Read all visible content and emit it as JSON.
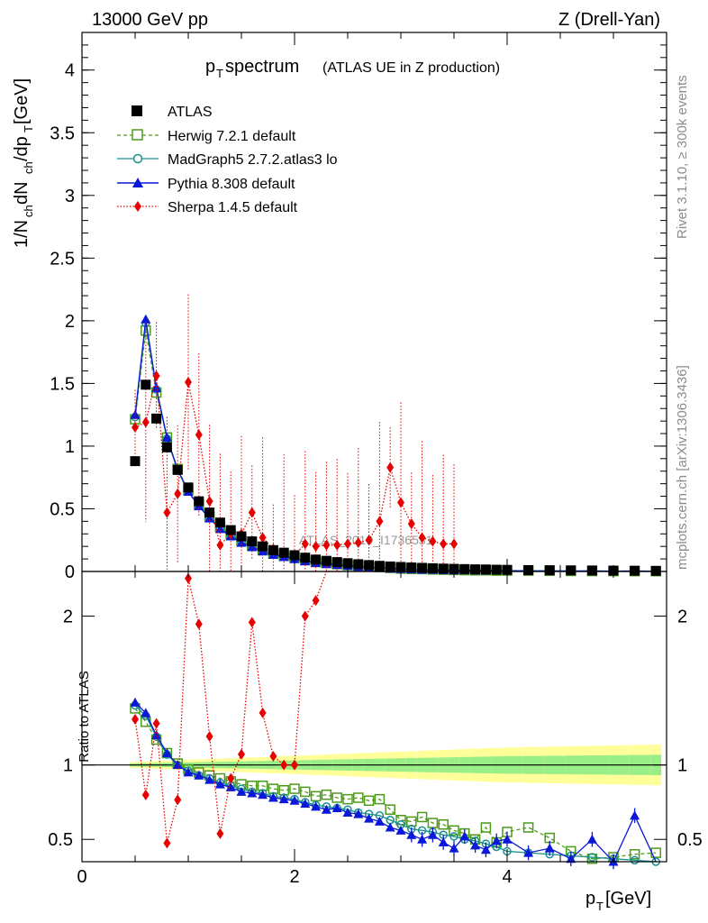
{
  "header": {
    "left": "13000 GeV pp",
    "right": "Z (Drell-Yan)"
  },
  "chart_data": {
    "type": "line",
    "title": "p",
    "title_sub": "T",
    "title_main": " spectrum",
    "title_note": " (ATLAS UE in Z production)",
    "ylabel": "1/N",
    "ylabel_sub1": "ch",
    "ylabel_mid": " dN",
    "ylabel_sub2": "ch",
    "ylabel_end": "/dp",
    "ylabel_sub3": "T",
    "ylabel_unit": " [GeV]",
    "ratio_ylabel": "Ratio to ATLAS",
    "xlabel": "p",
    "xlabel_sub": "T",
    "xlabel_unit": " [GeV]",
    "watermark": "ATLAS_2019_I1736531",
    "side_top": "Rivet 3.1.10, ≥ 300k events",
    "side_bottom": "mcplots.cern.ch [arXiv:1306.3436]",
    "xlim": [
      0,
      5.5
    ],
    "ylim": [
      0,
      4.3
    ],
    "ratio_ylim": [
      0.35,
      2.3
    ],
    "xticks": [
      "0",
      "2",
      "4"
    ],
    "yticks": [
      "0",
      "0.5",
      "1",
      "1.5",
      "2",
      "2.5",
      "3",
      "3.5",
      "4"
    ],
    "ratio_yticks": [
      "0.5",
      "1",
      "2"
    ],
    "x": [
      0.5,
      0.6,
      0.7,
      0.8,
      0.9,
      1.0,
      1.1,
      1.2,
      1.3,
      1.4,
      1.5,
      1.6,
      1.7,
      1.8,
      1.9,
      2.0,
      2.1,
      2.2,
      2.3,
      2.4,
      2.5,
      2.6,
      2.7,
      2.8,
      2.9,
      3.0,
      3.1,
      3.2,
      3.3,
      3.4,
      3.5,
      3.6,
      3.7,
      3.8,
      3.9,
      4.0,
      4.2,
      4.4,
      4.6,
      4.8,
      5.0,
      5.2,
      5.4
    ],
    "series": [
      {
        "name": "ATLAS",
        "color": "#000000",
        "marker": "square-filled",
        "values": [
          0.88,
          1.49,
          1.22,
          0.99,
          0.81,
          0.67,
          0.56,
          0.47,
          0.39,
          0.33,
          0.28,
          0.24,
          0.2,
          0.17,
          0.15,
          0.13,
          0.11,
          0.095,
          0.085,
          0.075,
          0.066,
          0.058,
          0.051,
          0.045,
          0.04,
          0.036,
          0.032,
          0.029,
          0.026,
          0.023,
          0.021,
          0.019,
          0.017,
          0.016,
          0.014,
          0.013,
          0.011,
          0.01,
          0.009,
          0.008,
          0.007,
          0.006,
          0.005
        ]
      },
      {
        "name": "Herwig 7.2.1 default",
        "color": "#4d9a1a",
        "marker": "square-open",
        "ratio": [
          1.38,
          1.29,
          1.17,
          1.08,
          1.01,
          0.97,
          0.95,
          0.93,
          0.91,
          0.89,
          0.87,
          0.86,
          0.86,
          0.84,
          0.83,
          0.84,
          0.82,
          0.79,
          0.8,
          0.78,
          0.77,
          0.78,
          0.76,
          0.77,
          0.7,
          0.63,
          0.62,
          0.65,
          0.61,
          0.6,
          0.56,
          0.54,
          0.5,
          0.58,
          0.48,
          0.55,
          0.58,
          0.51,
          0.42,
          0.37,
          0.38,
          0.4,
          0.41
        ]
      },
      {
        "name": "MadGraph5 2.7.2.atlas3 lo",
        "color": "#188f8f",
        "marker": "circle-open",
        "ratio": [
          1.4,
          1.33,
          1.19,
          1.07,
          1.0,
          0.96,
          0.93,
          0.91,
          0.88,
          0.86,
          0.84,
          0.82,
          0.81,
          0.79,
          0.78,
          0.77,
          0.75,
          0.73,
          0.72,
          0.71,
          0.7,
          0.68,
          0.67,
          0.66,
          0.63,
          0.6,
          0.57,
          0.56,
          0.55,
          0.53,
          0.52,
          0.5,
          0.49,
          0.47,
          0.45,
          0.42,
          0.41,
          0.4,
          0.39,
          0.38,
          0.37,
          0.36,
          0.35
        ]
      },
      {
        "name": "Pythia 8.308 default",
        "color": "#0b18d8",
        "marker": "triangle-filled",
        "ratio": [
          1.42,
          1.35,
          1.2,
          1.08,
          1.0,
          0.95,
          0.93,
          0.9,
          0.87,
          0.85,
          0.82,
          0.81,
          0.8,
          0.78,
          0.77,
          0.76,
          0.74,
          0.72,
          0.7,
          0.71,
          0.68,
          0.67,
          0.64,
          0.62,
          0.58,
          0.56,
          0.53,
          0.5,
          0.53,
          0.48,
          0.44,
          0.52,
          0.46,
          0.43,
          0.49,
          0.5,
          0.41,
          0.44,
          0.37,
          0.5,
          0.35,
          0.66,
          0.33
        ]
      },
      {
        "name": "Sherpa 1.4.5 default",
        "color": "#e60000",
        "marker": "diamond-filled",
        "values": [
          1.15,
          1.19,
          1.56,
          0.47,
          0.62,
          1.51,
          1.09,
          0.56,
          0.21,
          0.3,
          0.3,
          0.47,
          0.27,
          0.18,
          0.15,
          0.13,
          0.22,
          0.2,
          0.21,
          0.21,
          0.22,
          0.23,
          0.25,
          0.4,
          0.83,
          0.55,
          0.38,
          0.27,
          0.24,
          0.22,
          0.22
        ],
        "x": [
          0.5,
          0.6,
          0.7,
          0.8,
          0.9,
          1.0,
          1.1,
          1.2,
          1.3,
          1.4,
          1.5,
          1.6,
          1.7,
          1.8,
          1.9,
          2.0,
          2.1,
          2.2,
          2.3,
          2.4,
          2.5,
          2.6,
          2.7,
          2.8,
          2.9,
          3.0,
          3.1,
          3.2,
          3.3,
          3.4,
          3.5
        ]
      }
    ]
  }
}
